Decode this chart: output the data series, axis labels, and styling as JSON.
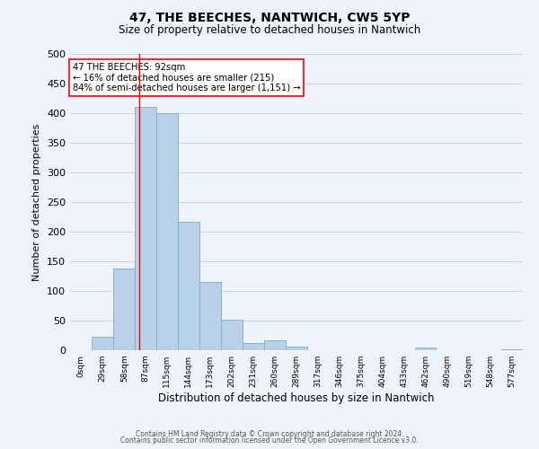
{
  "title": "47, THE BEECHES, NANTWICH, CW5 5YP",
  "subtitle": "Size of property relative to detached houses in Nantwich",
  "xlabel": "Distribution of detached houses by size in Nantwich",
  "ylabel": "Number of detached properties",
  "bin_labels": [
    "0sqm",
    "29sqm",
    "58sqm",
    "87sqm",
    "115sqm",
    "144sqm",
    "173sqm",
    "202sqm",
    "231sqm",
    "260sqm",
    "289sqm",
    "317sqm",
    "346sqm",
    "375sqm",
    "404sqm",
    "433sqm",
    "462sqm",
    "490sqm",
    "519sqm",
    "548sqm",
    "577sqm"
  ],
  "bar_heights": [
    0,
    22,
    138,
    410,
    400,
    217,
    115,
    52,
    12,
    16,
    6,
    0,
    0,
    0,
    0,
    0,
    4,
    0,
    0,
    0,
    2
  ],
  "bar_color": "#b8d0e8",
  "bar_edge_color": "#7aadd4",
  "property_line_x": 92,
  "bin_edges": [
    0,
    29,
    58,
    87,
    115,
    144,
    173,
    202,
    231,
    260,
    289,
    317,
    346,
    375,
    404,
    433,
    462,
    490,
    519,
    548,
    577,
    606
  ],
  "annotation_line1": "47 THE BEECHES: 92sqm",
  "annotation_line2": "← 16% of detached houses are smaller (215)",
  "annotation_line3": "84% of semi-detached houses are larger (1,151) →",
  "ylim": [
    0,
    500
  ],
  "grid_color": "#c8d8e8",
  "footer_line1": "Contains HM Land Registry data © Crown copyright and database right 2024.",
  "footer_line2": "Contains public sector information licensed under the Open Government Licence v3.0.",
  "background_color": "#eef4fa"
}
